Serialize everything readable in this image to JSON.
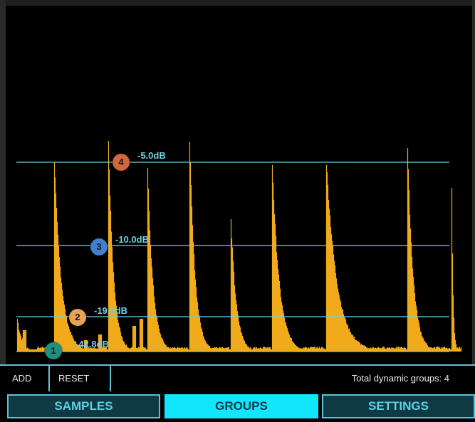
{
  "waveform": {
    "colors": {
      "wave": "#f0aa1a",
      "threshold_line": "#72d0e2",
      "background": "#000000"
    },
    "thresholds": [
      {
        "id": "1",
        "label": "-42.8dB",
        "color": "#1f8f7e"
      },
      {
        "id": "2",
        "label": "-19.6dB",
        "color": "#e8a255"
      },
      {
        "id": "3",
        "label": "-10.0dB",
        "color": "#3f7fd0"
      },
      {
        "id": "4",
        "label": "-5.0dB",
        "color": "#d2663c"
      }
    ]
  },
  "toolbar": {
    "add_label": "ADD",
    "reset_label": "RESET",
    "total_groups_text": "Total dynamic groups: 4"
  },
  "tabs": [
    {
      "label": "SAMPLES",
      "active": false
    },
    {
      "label": "GROUPS",
      "active": true
    },
    {
      "label": "SETTINGS",
      "active": false
    }
  ]
}
